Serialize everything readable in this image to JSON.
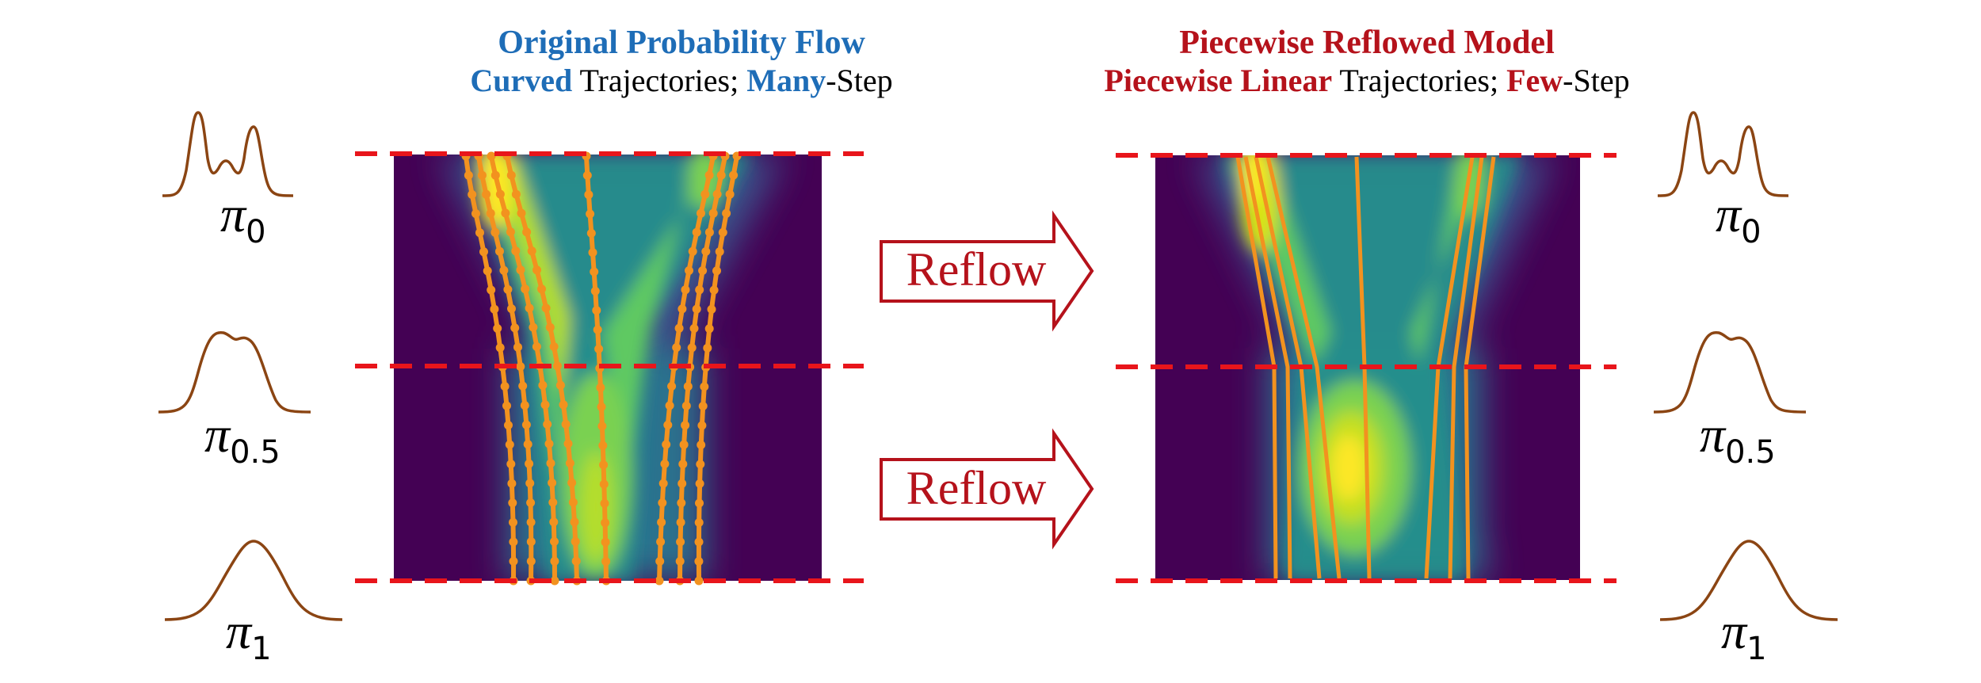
{
  "left_panel": {
    "title": "Original Probability Flow",
    "subtitle": {
      "part1": "Curved",
      "part2": " Trajectories; ",
      "part3": "Many",
      "part4": "-Step"
    },
    "title_color": "#1e6db7"
  },
  "right_panel": {
    "title": "Piecewise Reflowed Model",
    "subtitle": {
      "part1": "Piecewise Linear",
      "part2": " Trajectories; ",
      "part3": "Few",
      "part4": "-Step"
    },
    "title_color": "#b5121b"
  },
  "arrows": {
    "top_label": "Reflow",
    "bottom_label": "Reflow",
    "color": "#b5121b"
  },
  "distributions": {
    "symbol": "π",
    "labels": [
      "0",
      "0.5",
      "1"
    ],
    "curve_color": "#8b4513"
  },
  "colors": {
    "dashed_line": "#e8151b",
    "trajectory": "#f2921f",
    "heatmap_low": "#440154",
    "heatmap_high": "#fde725"
  }
}
